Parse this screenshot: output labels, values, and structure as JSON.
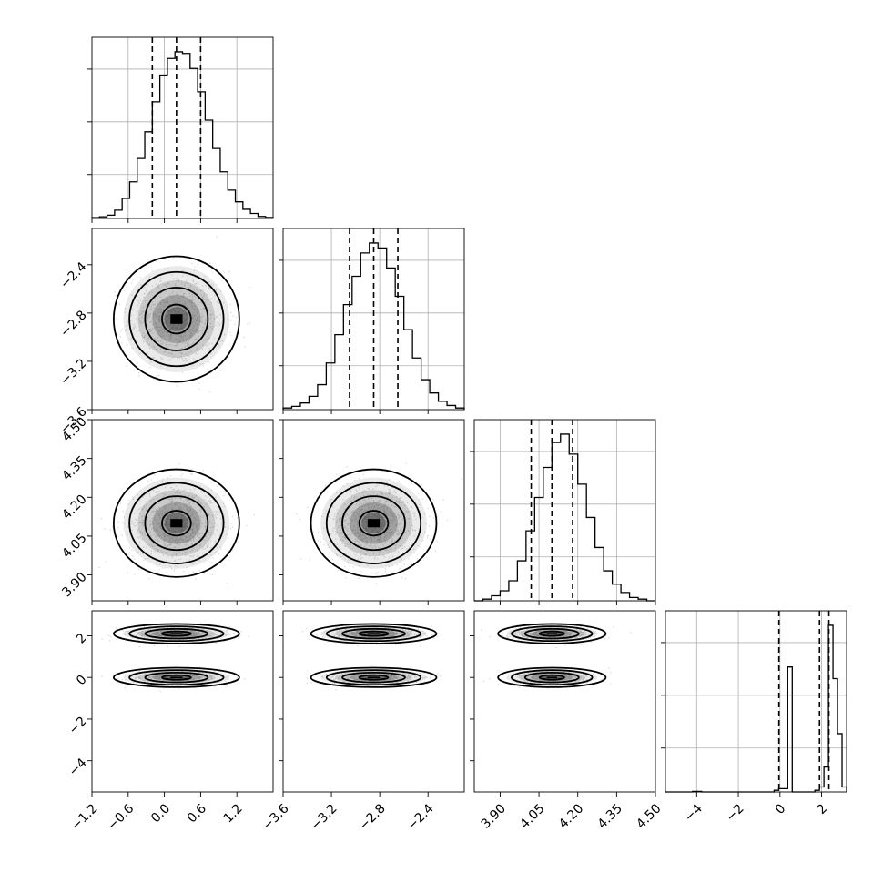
{
  "chart_data": {
    "type": "corner",
    "title": "",
    "parameters": [
      {
        "range": [
          -1.2,
          1.8
        ],
        "ticks": [
          -1.2,
          -0.6,
          0.0,
          0.6,
          1.2
        ],
        "tick_labels": [
          "−1.2",
          "−0.6",
          "0.0",
          "0.6",
          "1.2"
        ],
        "quantiles": [
          -0.2,
          0.2,
          0.6
        ],
        "mode": "gaussian",
        "mean": 0.2,
        "sigma": 0.4
      },
      {
        "range": [
          -3.6,
          -2.1
        ],
        "ticks": [
          -3.6,
          -3.2,
          -2.8,
          -2.4
        ],
        "tick_labels": [
          "−3.6",
          "−3.2",
          "−2.8",
          "−2.4"
        ],
        "quantiles": [
          -3.05,
          -2.85,
          -2.65
        ],
        "mode": "gaussian",
        "mean": -2.85,
        "sigma": 0.2
      },
      {
        "range": [
          3.8,
          4.5
        ],
        "ticks": [
          3.9,
          4.05,
          4.2,
          4.35,
          4.5
        ],
        "tick_labels": [
          "3.90",
          "4.05",
          "4.20",
          "4.35",
          "4.50"
        ],
        "quantiles": [
          4.02,
          4.1,
          4.18
        ],
        "mode": "gaussian",
        "mean": 4.1,
        "sigma": 0.08
      },
      {
        "range": [
          -5.5,
          3.2
        ],
        "ticks": [
          -4,
          -2,
          0,
          2
        ],
        "tick_labels": [
          "−4",
          "−2",
          "0",
          "2"
        ],
        "quantiles": [
          -0.05,
          1.9,
          2.35
        ],
        "mode": "bimodal",
        "components": [
          {
            "center": 0.0,
            "sigma": 0.18,
            "weight": 0.42
          },
          {
            "center": 2.1,
            "sigma": 0.18,
            "weight": 0.58
          }
        ]
      }
    ],
    "y_tick_labels": {
      "1": [
        "−3.6",
        "−3.2",
        "−2.8",
        "−2.4"
      ],
      "2": [
        "3.90",
        "4.05",
        "4.20",
        "4.35",
        "4.50"
      ],
      "3": [
        "−4",
        "−2",
        "0",
        "2"
      ]
    },
    "histograms": {
      "0": [
        0.005,
        0.01,
        0.02,
        0.05,
        0.12,
        0.22,
        0.36,
        0.52,
        0.7,
        0.86,
        0.96,
        1.0,
        0.99,
        0.9,
        0.76,
        0.59,
        0.42,
        0.28,
        0.17,
        0.1,
        0.055,
        0.03,
        0.012,
        0.006
      ],
      "1": [
        0.01,
        0.02,
        0.04,
        0.08,
        0.15,
        0.28,
        0.45,
        0.63,
        0.8,
        0.94,
        1.0,
        0.97,
        0.85,
        0.68,
        0.48,
        0.31,
        0.18,
        0.1,
        0.05,
        0.025,
        0.01
      ],
      "2": [
        0.0,
        0.01,
        0.03,
        0.06,
        0.12,
        0.24,
        0.42,
        0.62,
        0.8,
        0.95,
        1.0,
        0.88,
        0.7,
        0.5,
        0.32,
        0.18,
        0.1,
        0.05,
        0.02,
        0.01,
        0.0
      ],
      "3": [
        0.0,
        0.0,
        0.0,
        0.0,
        0.0,
        0.0,
        0.003,
        0.003,
        0.0,
        0.0,
        0.0,
        0.0,
        0.0,
        0.0,
        0.0,
        0.0,
        0.0,
        0.0,
        0.0,
        0.0,
        0.0,
        0.0,
        0.0,
        0.0,
        0.01,
        0.02,
        0.02,
        0.75,
        0.0,
        0.0,
        0.0,
        0.0,
        0.0,
        0.01,
        0.03,
        0.15,
        1.0,
        0.68,
        0.35,
        0.03
      ]
    },
    "grid": true,
    "line_color": "#000000",
    "point_color": "#555555"
  }
}
